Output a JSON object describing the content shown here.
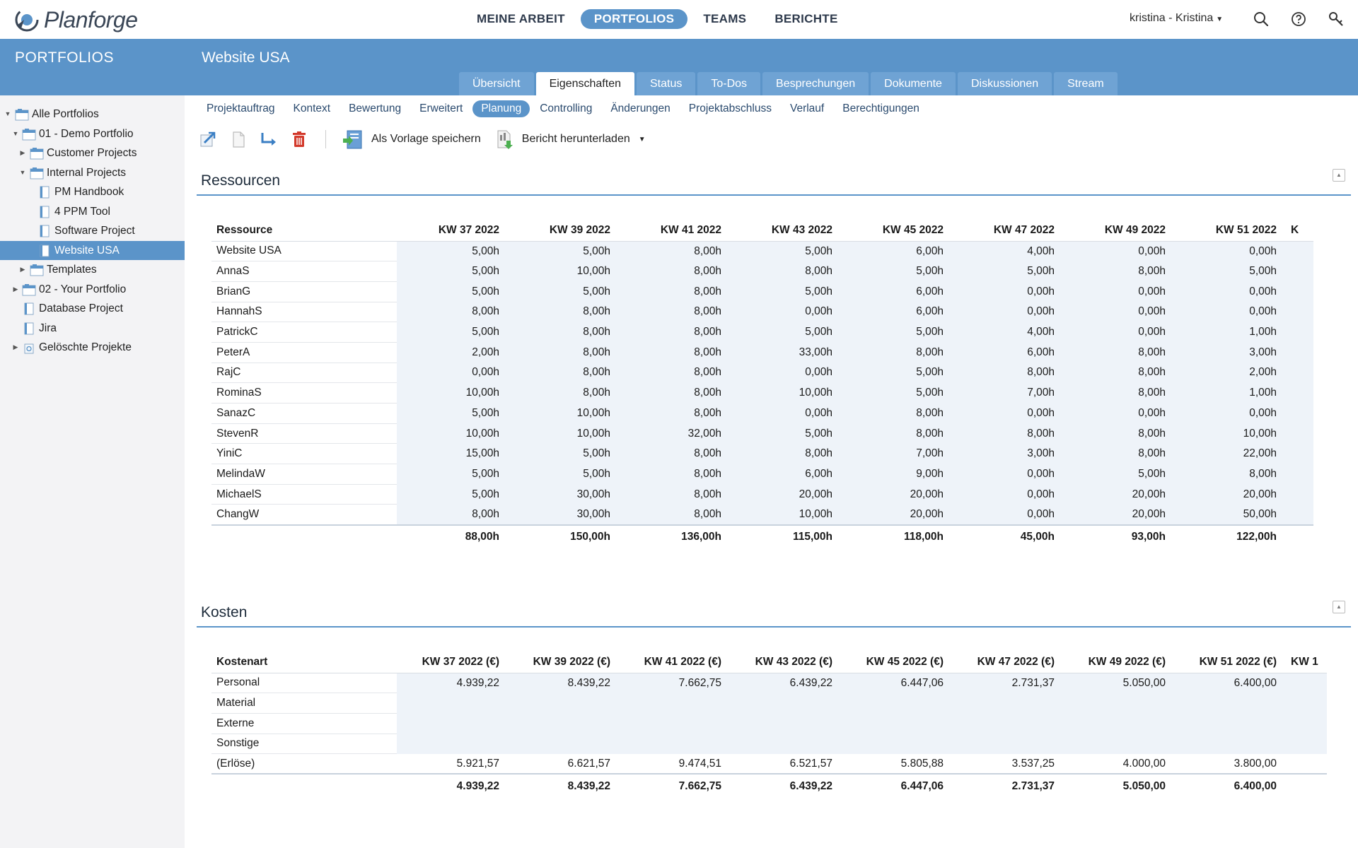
{
  "app": {
    "logo_text": "Planforge",
    "nav": [
      "MEINE ARBEIT",
      "PORTFOLIOS",
      "TEAMS",
      "BERICHTE"
    ],
    "active_nav": 1,
    "user": "kristina - Kristina",
    "icons": [
      "search-icon",
      "help-icon",
      "key-icon"
    ]
  },
  "sidebar": {
    "title": "PORTFOLIOS",
    "items": [
      {
        "label": "Alle Portfolios",
        "level": 0,
        "toggle": "▼",
        "icon": "portfolio"
      },
      {
        "label": "01 - Demo Portfolio",
        "level": 1,
        "toggle": "▼",
        "icon": "portfolio"
      },
      {
        "label": "Customer Projects",
        "level": 2,
        "toggle": "▶",
        "icon": "portfolio"
      },
      {
        "label": "Internal Projects",
        "level": 2,
        "toggle": "▼",
        "icon": "portfolio"
      },
      {
        "label": "PM Handbook",
        "level": 3,
        "toggle": "",
        "icon": "project"
      },
      {
        "label": "4 PPM Tool",
        "level": 3,
        "toggle": "",
        "icon": "project"
      },
      {
        "label": "Software Project",
        "level": 3,
        "toggle": "",
        "icon": "project"
      },
      {
        "label": "Website USA",
        "level": 3,
        "toggle": "",
        "icon": "project",
        "selected": true
      },
      {
        "label": "Templates",
        "level": 2,
        "toggle": "▶",
        "icon": "portfolio"
      },
      {
        "label": "02 - Your Portfolio",
        "level": 1,
        "toggle": "▶",
        "icon": "portfolio"
      },
      {
        "label": "Database Project",
        "level": 1,
        "toggle": "",
        "icon": "project"
      },
      {
        "label": "Jira",
        "level": 1,
        "toggle": "",
        "icon": "project"
      },
      {
        "label": "Gelöschte Projekte",
        "level": 1,
        "toggle": "▶",
        "icon": "trash"
      }
    ]
  },
  "page": {
    "title": "Website USA",
    "tabs": [
      "Übersicht",
      "Eigenschaften",
      "Status",
      "To-Dos",
      "Besprechungen",
      "Dokumente",
      "Diskussionen",
      "Stream"
    ],
    "active_tab": 1,
    "subtabs": [
      "Projektauftrag",
      "Kontext",
      "Bewertung",
      "Erweitert",
      "Planung",
      "Controlling",
      "Änderungen",
      "Projektabschluss",
      "Verlauf",
      "Berechtigungen"
    ],
    "active_subtab": 4,
    "toolbar": {
      "save_template": "Als Vorlage speichern",
      "download_report": "Bericht herunterladen"
    }
  },
  "resources": {
    "title": "Ressourcen",
    "header_first": "Ressource",
    "columns": [
      "KW 37 2022",
      "KW 39 2022",
      "KW 41 2022",
      "KW 43 2022",
      "KW 45 2022",
      "KW 47 2022",
      "KW 49 2022",
      "KW 51 2022",
      "K"
    ],
    "rows": [
      {
        "name": "Website USA",
        "values": [
          "5,00h",
          "5,00h",
          "8,00h",
          "5,00h",
          "6,00h",
          "4,00h",
          "0,00h",
          "0,00h"
        ]
      },
      {
        "name": "AnnaS",
        "values": [
          "5,00h",
          "10,00h",
          "8,00h",
          "8,00h",
          "5,00h",
          "5,00h",
          "8,00h",
          "5,00h"
        ]
      },
      {
        "name": "BrianG",
        "values": [
          "5,00h",
          "5,00h",
          "8,00h",
          "5,00h",
          "6,00h",
          "0,00h",
          "0,00h",
          "0,00h"
        ]
      },
      {
        "name": "HannahS",
        "values": [
          "8,00h",
          "8,00h",
          "8,00h",
          "0,00h",
          "6,00h",
          "0,00h",
          "0,00h",
          "0,00h"
        ]
      },
      {
        "name": "PatrickC",
        "values": [
          "5,00h",
          "8,00h",
          "8,00h",
          "5,00h",
          "5,00h",
          "4,00h",
          "0,00h",
          "1,00h"
        ]
      },
      {
        "name": "PeterA",
        "values": [
          "2,00h",
          "8,00h",
          "8,00h",
          "33,00h",
          "8,00h",
          "6,00h",
          "8,00h",
          "3,00h"
        ]
      },
      {
        "name": "RajC",
        "values": [
          "0,00h",
          "8,00h",
          "8,00h",
          "0,00h",
          "5,00h",
          "8,00h",
          "8,00h",
          "2,00h"
        ]
      },
      {
        "name": "RominaS",
        "values": [
          "10,00h",
          "8,00h",
          "8,00h",
          "10,00h",
          "5,00h",
          "7,00h",
          "8,00h",
          "1,00h"
        ]
      },
      {
        "name": "SanazC",
        "values": [
          "5,00h",
          "10,00h",
          "8,00h",
          "0,00h",
          "8,00h",
          "0,00h",
          "0,00h",
          "0,00h"
        ]
      },
      {
        "name": "StevenR",
        "values": [
          "10,00h",
          "10,00h",
          "32,00h",
          "5,00h",
          "8,00h",
          "8,00h",
          "8,00h",
          "10,00h"
        ]
      },
      {
        "name": "YiniC",
        "values": [
          "15,00h",
          "5,00h",
          "8,00h",
          "8,00h",
          "7,00h",
          "3,00h",
          "8,00h",
          "22,00h"
        ]
      },
      {
        "name": "MelindaW",
        "values": [
          "5,00h",
          "5,00h",
          "8,00h",
          "6,00h",
          "9,00h",
          "0,00h",
          "5,00h",
          "8,00h"
        ]
      },
      {
        "name": "MichaelS",
        "values": [
          "5,00h",
          "30,00h",
          "8,00h",
          "20,00h",
          "20,00h",
          "0,00h",
          "20,00h",
          "20,00h"
        ]
      },
      {
        "name": "ChangW",
        "values": [
          "8,00h",
          "30,00h",
          "8,00h",
          "10,00h",
          "20,00h",
          "0,00h",
          "20,00h",
          "50,00h"
        ]
      }
    ],
    "totals": [
      "88,00h",
      "150,00h",
      "136,00h",
      "115,00h",
      "118,00h",
      "45,00h",
      "93,00h",
      "122,00h"
    ]
  },
  "costs": {
    "title": "Kosten",
    "header_first": "Kostenart",
    "columns": [
      "KW 37 2022 (€)",
      "KW 39 2022 (€)",
      "KW 41 2022 (€)",
      "KW 43 2022 (€)",
      "KW 45 2022 (€)",
      "KW 47 2022 (€)",
      "KW 49 2022 (€)",
      "KW 51 2022 (€)",
      "KW 1"
    ],
    "rows": [
      {
        "name": "Personal",
        "values": [
          "4.939,22",
          "8.439,22",
          "7.662,75",
          "6.439,22",
          "6.447,06",
          "2.731,37",
          "5.050,00",
          "6.400,00"
        ]
      },
      {
        "name": "Material",
        "values": [
          "",
          "",
          "",
          "",
          "",
          "",
          "",
          ""
        ]
      },
      {
        "name": "Externe",
        "values": [
          "",
          "",
          "",
          "",
          "",
          "",
          "",
          ""
        ]
      },
      {
        "name": "Sonstige",
        "values": [
          "",
          "",
          "",
          "",
          "",
          "",
          "",
          ""
        ]
      },
      {
        "name": "(Erlöse)",
        "values": [
          "5.921,57",
          "6.621,57",
          "9.474,51",
          "6.521,57",
          "5.805,88",
          "3.537,25",
          "4.000,00",
          "3.800,00"
        ]
      }
    ],
    "totals": [
      "4.939,22",
      "8.439,22",
      "7.662,75",
      "6.439,22",
      "6.447,06",
      "2.731,37",
      "5.050,00",
      "6.400,00"
    ]
  },
  "colors": {
    "accent": "#5b94c9",
    "tab_inactive": "#6fa3d4",
    "cell_bg": "#eef3f9",
    "delete_red": "#d33a2c"
  }
}
